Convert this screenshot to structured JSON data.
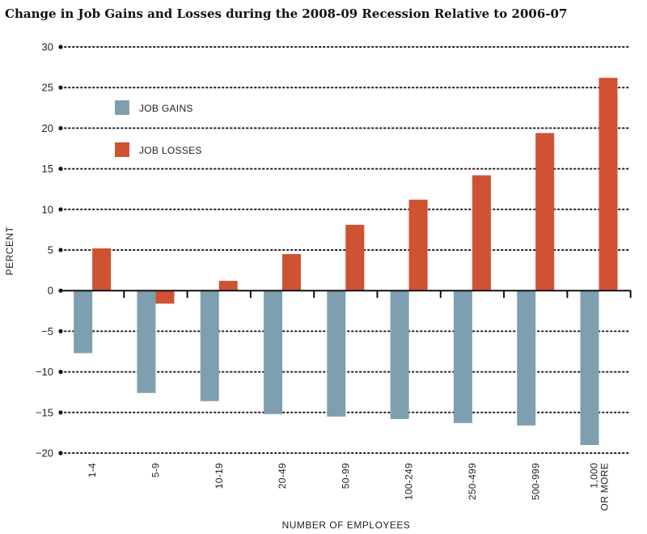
{
  "chart_data": {
    "type": "bar",
    "title": "Change in Job Gains and Losses during the 2008-09 Recession Relative to 2006-07",
    "xlabel": "NUMBER OF EMPLOYEES",
    "ylabel": "PERCENT",
    "ylim": [
      -20,
      30
    ],
    "yticks": [
      30,
      25,
      20,
      15,
      10,
      5,
      0,
      -5,
      -10,
      -15,
      -20
    ],
    "ytick_labels": [
      "30",
      "25",
      "20",
      "15",
      "10",
      "5",
      "0",
      "−5",
      "−10",
      "−15",
      "−20"
    ],
    "categories": [
      "1-4",
      "5-9",
      "10-19",
      "20-49",
      "50-99",
      "100-249",
      "250-499",
      "500-999",
      "1,000\nOR MORE"
    ],
    "series": [
      {
        "name": "JOB GAINS",
        "color": "#7d9fb0",
        "values": [
          -7.7,
          -12.6,
          -13.6,
          -15.2,
          -15.5,
          -15.8,
          -16.3,
          -16.6,
          -19.0
        ]
      },
      {
        "name": "JOB LOSSES",
        "color": "#cf5233",
        "values": [
          5.2,
          -1.6,
          1.2,
          4.5,
          8.1,
          11.2,
          14.2,
          19.4,
          26.2
        ]
      }
    ],
    "grid": true,
    "legend_position": "top-left"
  }
}
